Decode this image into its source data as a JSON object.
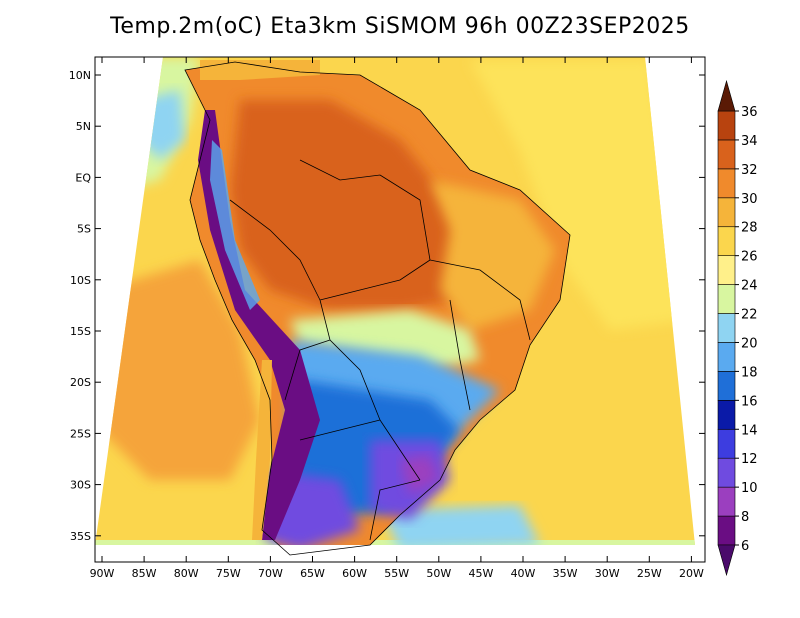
{
  "title": "Temp.2m(oC) Eta3km SiSMOM 96h 00Z23SEP2025",
  "lat_labels": [
    "10N",
    "5N",
    "EQ",
    "5S",
    "10S",
    "15S",
    "20S",
    "25S",
    "30S",
    "35S"
  ],
  "lon_labels": [
    "90W",
    "85W",
    "80W",
    "75W",
    "70W",
    "65W",
    "60W",
    "55W",
    "50W",
    "45W",
    "40W",
    "35W",
    "30W",
    "25W",
    "20W"
  ],
  "colorbar": {
    "labels": [
      "6",
      "8",
      "10",
      "12",
      "14",
      "16",
      "18",
      "20",
      "22",
      "24",
      "26",
      "28",
      "30",
      "32",
      "34",
      "36"
    ],
    "colors": [
      "#6a0d83",
      "#9b3fbf",
      "#6f4be0",
      "#3d3de0",
      "#0a1aa8",
      "#1f6fd8",
      "#5aaaf0",
      "#8fd4f2",
      "#d8f6a0",
      "#fff08a",
      "#fbd64d",
      "#f5b43a",
      "#f08a2c",
      "#d9621c",
      "#b8430f",
      "#7a2608"
    ],
    "under_color": "#4a0a6b",
    "over_color": "#5a1a05"
  },
  "legend_title": "Temp.2m(oC)"
}
